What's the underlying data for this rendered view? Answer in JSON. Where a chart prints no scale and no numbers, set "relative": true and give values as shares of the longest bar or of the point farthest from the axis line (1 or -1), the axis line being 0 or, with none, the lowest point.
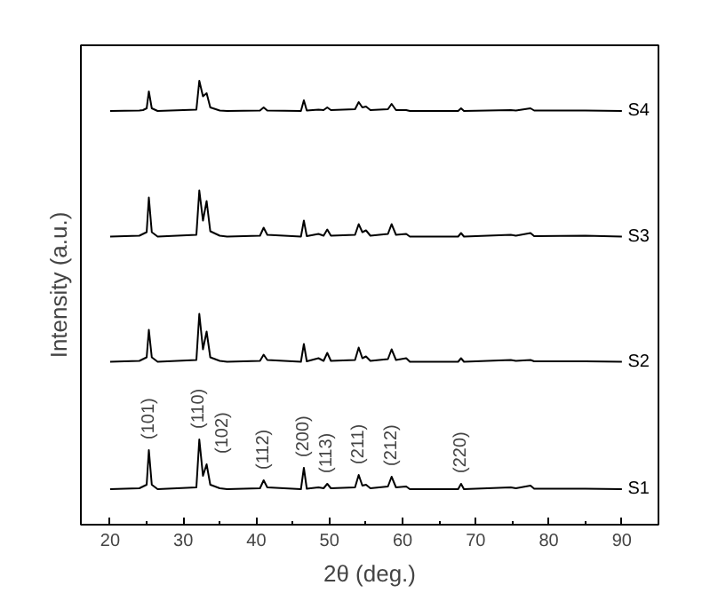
{
  "chart_data": {
    "type": "line",
    "relative": true,
    "xlabel": "2θ (deg.)",
    "ylabel": "Intensity (a.u.)",
    "grid": false,
    "legend": false,
    "marker": "none",
    "line_style": "solid",
    "xlim": [
      16,
      95
    ],
    "xticks": [
      20,
      {
        "value": 25,
        "label": null
      },
      30,
      {
        "value": 35,
        "label": null
      },
      40,
      {
        "value": 45,
        "label": null
      },
      50,
      {
        "value": 55,
        "label": null
      },
      60,
      {
        "value": 65,
        "label": null
      },
      70,
      {
        "value": 75,
        "label": null
      },
      80,
      {
        "value": 85,
        "label": null
      },
      90
    ],
    "x": [
      20,
      24,
      24.5,
      25,
      25.3,
      25.7,
      26.5,
      31.8,
      32.2,
      32.7,
      33.2,
      33.7,
      35,
      36,
      40.5,
      41,
      41.5,
      46.1,
      46.5,
      46.9,
      48.5,
      49.2,
      49.7,
      50.2,
      53.5,
      54,
      54.5,
      55,
      55.6,
      58,
      58.5,
      59.1,
      60.5,
      61,
      67.6,
      68,
      68.4,
      74.8,
      75.5,
      77.5,
      78,
      85,
      90
    ],
    "series": [
      {
        "name": "S1",
        "color": "#000000",
        "values": [
          0.08,
          0.082,
          0.086,
          0.09,
          0.168,
          0.09,
          0.08,
          0.084,
          0.192,
          0.11,
          0.136,
          0.09,
          0.082,
          0.08,
          0.082,
          0.1,
          0.084,
          0.08,
          0.128,
          0.081,
          0.084,
          0.082,
          0.092,
          0.082,
          0.084,
          0.112,
          0.088,
          0.09,
          0.082,
          0.086,
          0.108,
          0.084,
          0.086,
          0.08,
          0.08,
          0.092,
          0.08,
          0.084,
          0.082,
          0.088,
          0.081,
          0.081,
          0.08
        ]
      },
      {
        "name": "S2",
        "color": "#000000",
        "values": [
          0.367,
          0.369,
          0.373,
          0.377,
          0.439,
          0.377,
          0.367,
          0.371,
          0.475,
          0.395,
          0.435,
          0.377,
          0.369,
          0.367,
          0.369,
          0.383,
          0.371,
          0.367,
          0.407,
          0.368,
          0.375,
          0.369,
          0.387,
          0.369,
          0.371,
          0.399,
          0.375,
          0.379,
          0.369,
          0.373,
          0.395,
          0.371,
          0.375,
          0.367,
          0.367,
          0.375,
          0.367,
          0.371,
          0.369,
          0.371,
          0.368,
          0.368,
          0.367
        ]
      },
      {
        "name": "S3",
        "color": "#000000",
        "values": [
          0.649,
          0.651,
          0.655,
          0.659,
          0.737,
          0.659,
          0.649,
          0.653,
          0.753,
          0.685,
          0.729,
          0.661,
          0.651,
          0.649,
          0.651,
          0.669,
          0.653,
          0.649,
          0.685,
          0.65,
          0.655,
          0.651,
          0.665,
          0.651,
          0.653,
          0.677,
          0.659,
          0.663,
          0.651,
          0.655,
          0.677,
          0.653,
          0.655,
          0.649,
          0.649,
          0.657,
          0.649,
          0.653,
          0.651,
          0.657,
          0.65,
          0.651,
          0.649
        ]
      },
      {
        "name": "S4",
        "color": "#000000",
        "values": [
          0.932,
          0.933,
          0.934,
          0.938,
          0.976,
          0.938,
          0.932,
          0.935,
          1.0,
          0.965,
          0.972,
          0.94,
          0.933,
          0.932,
          0.933,
          0.94,
          0.933,
          0.932,
          0.956,
          0.933,
          0.935,
          0.934,
          0.94,
          0.934,
          0.936,
          0.952,
          0.94,
          0.942,
          0.934,
          0.936,
          0.948,
          0.934,
          0.934,
          0.932,
          0.932,
          0.938,
          0.932,
          0.934,
          0.933,
          0.938,
          0.933,
          0.933,
          0.932
        ]
      }
    ],
    "annotations": [
      {
        "text": "(101)",
        "x": 25.3,
        "y": 0.168
      },
      {
        "text": "(110)",
        "x": 32.2,
        "y": 0.192
      },
      {
        "text": "(102)",
        "x": 33.2,
        "y": 0.136
      },
      {
        "text": "(112)",
        "x": 41,
        "y": 0.1
      },
      {
        "text": "(200)",
        "x": 46.5,
        "y": 0.128
      },
      {
        "text": "(113)",
        "x": 49.7,
        "y": 0.092
      },
      {
        "text": "(211)",
        "x": 54,
        "y": 0.112
      },
      {
        "text": "(212)",
        "x": 58.5,
        "y": 0.108
      },
      {
        "text": "(220)",
        "x": 68,
        "y": 0.092
      }
    ]
  }
}
